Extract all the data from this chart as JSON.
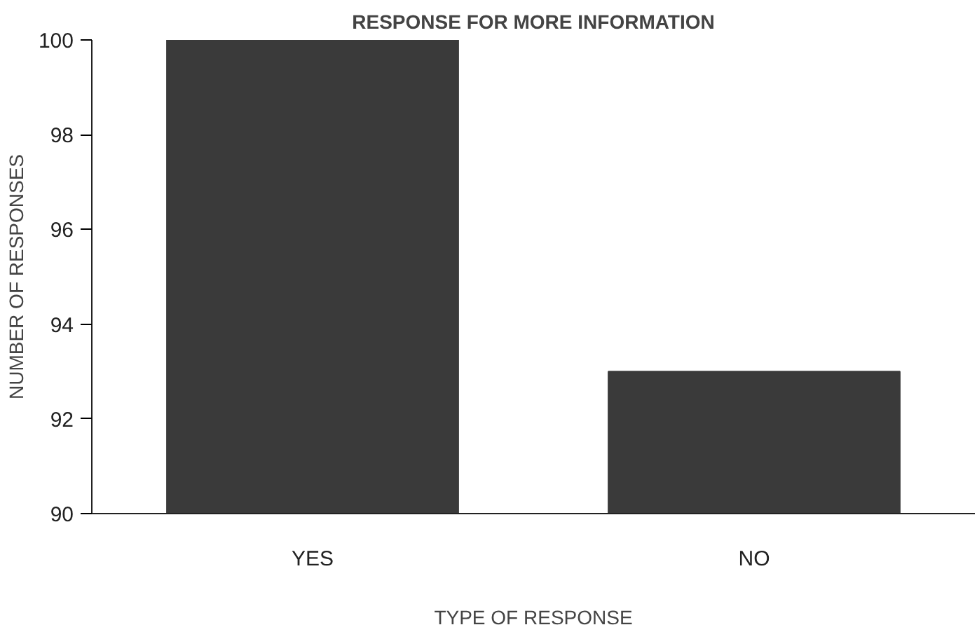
{
  "chart_data": {
    "type": "bar",
    "title": "RESPONSE FOR MORE INFORMATION",
    "xlabel": "TYPE OF RESPONSE",
    "ylabel": "NUMBER OF RESPONSES",
    "categories": [
      "YES",
      "NO"
    ],
    "values": [
      100,
      93
    ],
    "color": "#3a3a3a",
    "ylim": [
      90,
      100
    ],
    "yticks": [
      90,
      92,
      94,
      96,
      98,
      100
    ],
    "grid": false
  }
}
